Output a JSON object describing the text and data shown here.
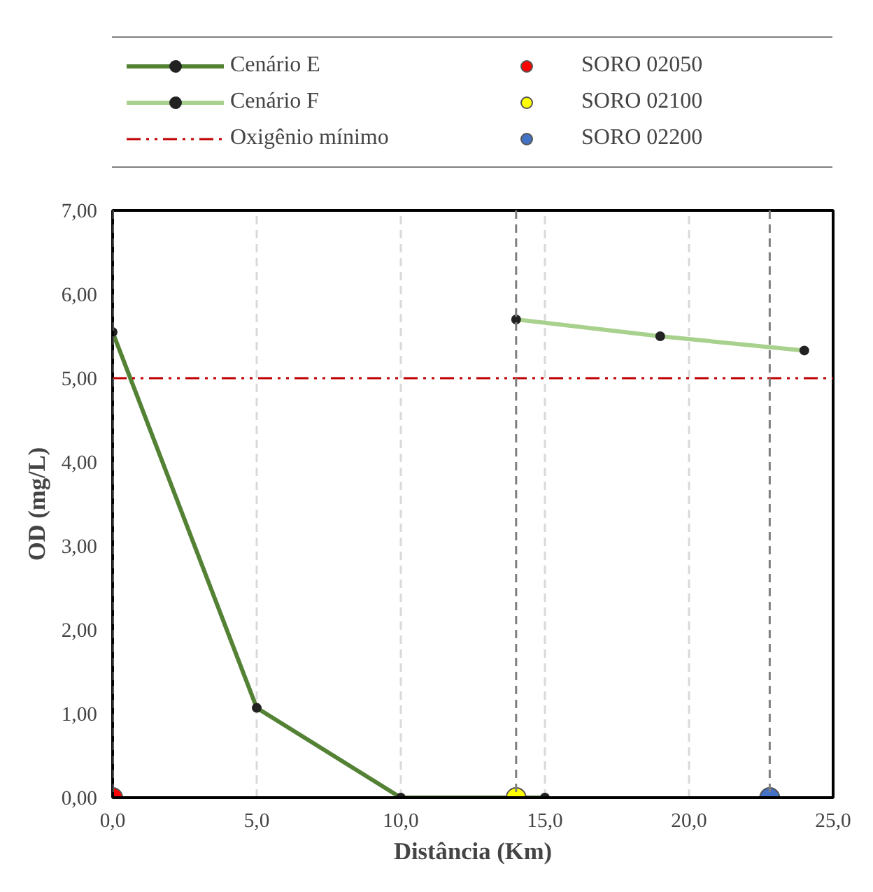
{
  "chart_data": {
    "type": "line",
    "xlabel": "Distância (Km)",
    "ylabel": "OD (mg/L)",
    "xlim": [
      0,
      25
    ],
    "ylim": [
      0,
      7
    ],
    "xticks": [
      {
        "value": 0,
        "label": "0,0"
      },
      {
        "value": 5,
        "label": "5,0"
      },
      {
        "value": 10,
        "label": "10,0"
      },
      {
        "value": 15,
        "label": "15,0"
      },
      {
        "value": 20,
        "label": "20,0"
      },
      {
        "value": 25,
        "label": "25,0"
      }
    ],
    "yticks": [
      {
        "value": 0,
        "label": "0,00"
      },
      {
        "value": 1,
        "label": "1,00"
      },
      {
        "value": 2,
        "label": "2,00"
      },
      {
        "value": 3,
        "label": "3,00"
      },
      {
        "value": 4,
        "label": "4,00"
      },
      {
        "value": 5,
        "label": "5,00"
      },
      {
        "value": 6,
        "label": "6,00"
      },
      {
        "value": 7,
        "label": "7,00"
      }
    ],
    "grid": "x",
    "legend": "top",
    "marker": "circle",
    "line_style": "solid",
    "series": [
      {
        "name": "Cenário E",
        "color": "#548235",
        "x": [
          0,
          5,
          10,
          15
        ],
        "values": [
          5.55,
          1.07,
          0,
          0
        ]
      },
      {
        "name": "SORO 02050",
        "type": "scatter",
        "color": "#ff0000",
        "x": [
          0
        ],
        "values": [
          0
        ]
      },
      {
        "name": "Cenário F",
        "color": "#a9d18e",
        "x": [
          14,
          19,
          24
        ],
        "values": [
          5.7,
          5.5,
          5.33
        ]
      },
      {
        "name": "SORO 02100",
        "type": "scatter",
        "color": "#ffff00",
        "x": [
          14
        ],
        "values": [
          0
        ]
      },
      {
        "name": "SORO 02200",
        "type": "scatter",
        "color": "#4472c4",
        "x": [
          22.8
        ],
        "values": [
          0
        ]
      }
    ],
    "ref_lines": [
      {
        "axis": "y",
        "value": 5,
        "label": "Oxigênio mínimo",
        "color": "#c00000",
        "line_style": "dashdot"
      },
      {
        "axis": "x",
        "value": 0,
        "label": null,
        "color": "#7f7f7f",
        "line_style": "dashed"
      },
      {
        "axis": "x",
        "value": 14,
        "label": null,
        "color": "#7f7f7f",
        "line_style": "dashed"
      },
      {
        "axis": "x",
        "value": 22.8,
        "label": null,
        "color": "#7f7f7f",
        "line_style": "dashed"
      }
    ]
  }
}
